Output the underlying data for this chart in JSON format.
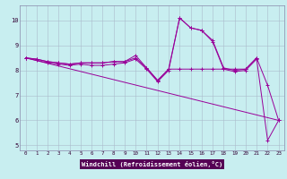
{
  "xlabel": "Windchill (Refroidissement éolien,°C)",
  "bg_color": "#c8eef0",
  "line_color": "#990099",
  "grid_color": "#aabbcc",
  "xlabel_bg": "#550055",
  "xlabel_fg": "#ffffff",
  "xlim": [
    -0.5,
    23.5
  ],
  "ylim": [
    4.8,
    10.6
  ],
  "xticks": [
    0,
    1,
    2,
    3,
    4,
    5,
    6,
    7,
    8,
    9,
    10,
    11,
    12,
    13,
    14,
    15,
    16,
    17,
    18,
    19,
    20,
    21,
    22,
    23
  ],
  "yticks": [
    5,
    6,
    7,
    8,
    9,
    10
  ],
  "series1_x": [
    0,
    1,
    2,
    3,
    4,
    5,
    6,
    7,
    8,
    9,
    10,
    11,
    12,
    13,
    14,
    15,
    16,
    17,
    18,
    19,
    20,
    21
  ],
  "series1_y": [
    8.5,
    8.45,
    8.35,
    8.3,
    8.25,
    8.3,
    8.3,
    8.3,
    8.35,
    8.35,
    8.5,
    8.1,
    7.6,
    8.05,
    8.05,
    8.05,
    8.05,
    8.05,
    8.05,
    8.05,
    8.05,
    8.5
  ],
  "series2_x": [
    0,
    1,
    2,
    3,
    4,
    5,
    6,
    7,
    8,
    9,
    10,
    11,
    12,
    13,
    14,
    15,
    16,
    17,
    18,
    19,
    20,
    21,
    22,
    23
  ],
  "series2_y": [
    8.5,
    8.45,
    8.35,
    8.3,
    8.25,
    8.3,
    8.3,
    8.3,
    8.35,
    8.35,
    8.6,
    8.1,
    7.6,
    8.05,
    10.1,
    9.7,
    9.6,
    9.2,
    8.1,
    8.0,
    8.05,
    8.5,
    7.4,
    6.0
  ],
  "series3_x": [
    0,
    1,
    2,
    3,
    4,
    5,
    6,
    7,
    8,
    9,
    10,
    11,
    12,
    13,
    14,
    15,
    16,
    17,
    18,
    19,
    20,
    21,
    22,
    23
  ],
  "series3_y": [
    8.5,
    8.4,
    8.3,
    8.25,
    8.2,
    8.25,
    8.2,
    8.2,
    8.25,
    8.3,
    8.45,
    8.05,
    7.55,
    8.0,
    10.1,
    9.7,
    9.6,
    9.15,
    8.05,
    7.95,
    8.0,
    8.45,
    5.2,
    6.0
  ],
  "series4_x": [
    0,
    23
  ],
  "series4_y": [
    8.5,
    6.0
  ]
}
